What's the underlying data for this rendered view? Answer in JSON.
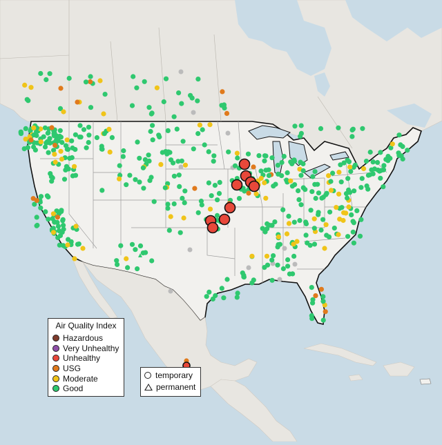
{
  "legend": {
    "title": "Air Quality Index",
    "items": [
      {
        "label": "Hazardous",
        "color": "#7e3b2c"
      },
      {
        "label": "Very Unhealthy",
        "color": "#8f4fa8"
      },
      {
        "label": "Unhealthy",
        "color": "#e8483a"
      },
      {
        "label": "USG",
        "color": "#e07a1c"
      },
      {
        "label": "Moderate",
        "color": "#f0c419"
      },
      {
        "label": "Good",
        "color": "#2fc86f"
      }
    ]
  },
  "monitor_legend": {
    "items": [
      {
        "label": "temporary",
        "shape": "circle"
      },
      {
        "label": "permanent",
        "shape": "triangle"
      }
    ]
  },
  "colors": {
    "water": "#c9dbe6",
    "land_us": "#f2f1ee",
    "land_other": "#e8e6e1",
    "good": "#2fc86f",
    "moderate": "#f0c419",
    "usg": "#e07a1c",
    "unhealthy": "#e8483a",
    "no_data": "#bbbbbb"
  }
}
